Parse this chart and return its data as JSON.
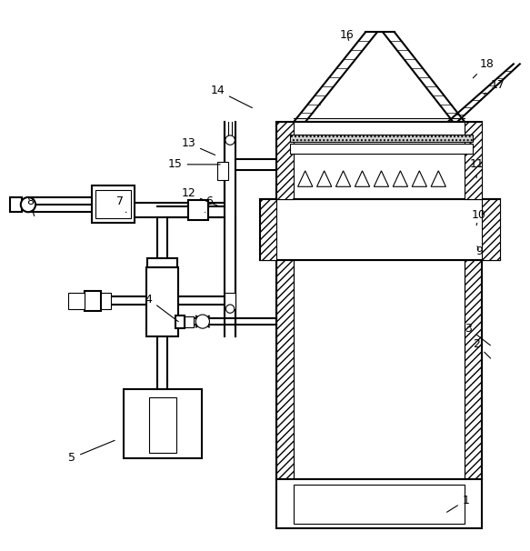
{
  "bg_color": "#ffffff",
  "lc": "#000000",
  "lw_main": 1.5,
  "lw_thin": 0.8,
  "label_fs": 9,
  "fig_w": 5.83,
  "fig_h": 6.06,
  "dpi": 100,
  "labels": {
    "1": [
      0.88,
      0.075,
      0.84,
      0.05
    ],
    "2": [
      0.9,
      0.37,
      0.93,
      0.34
    ],
    "3": [
      0.885,
      0.4,
      0.93,
      0.365
    ],
    "4": [
      0.28,
      0.455,
      0.34,
      0.41
    ],
    "5": [
      0.135,
      0.155,
      0.22,
      0.19
    ],
    "6": [
      0.395,
      0.64,
      0.385,
      0.615
    ],
    "7": [
      0.225,
      0.64,
      0.24,
      0.615
    ],
    "8": [
      0.055,
      0.64,
      0.065,
      0.608
    ],
    "9": [
      0.905,
      0.545,
      0.9,
      0.56
    ],
    "10": [
      0.905,
      0.615,
      0.9,
      0.595
    ],
    "11": [
      0.9,
      0.71,
      0.9,
      0.68
    ],
    "12": [
      0.355,
      0.655,
      0.42,
      0.628
    ],
    "13": [
      0.355,
      0.75,
      0.41,
      0.726
    ],
    "14": [
      0.41,
      0.85,
      0.48,
      0.815
    ],
    "15": [
      0.33,
      0.71,
      0.42,
      0.71
    ],
    "16": [
      0.655,
      0.955,
      0.66,
      0.94
    ],
    "17": [
      0.94,
      0.86,
      0.91,
      0.84
    ],
    "18": [
      0.92,
      0.9,
      0.89,
      0.87
    ]
  }
}
